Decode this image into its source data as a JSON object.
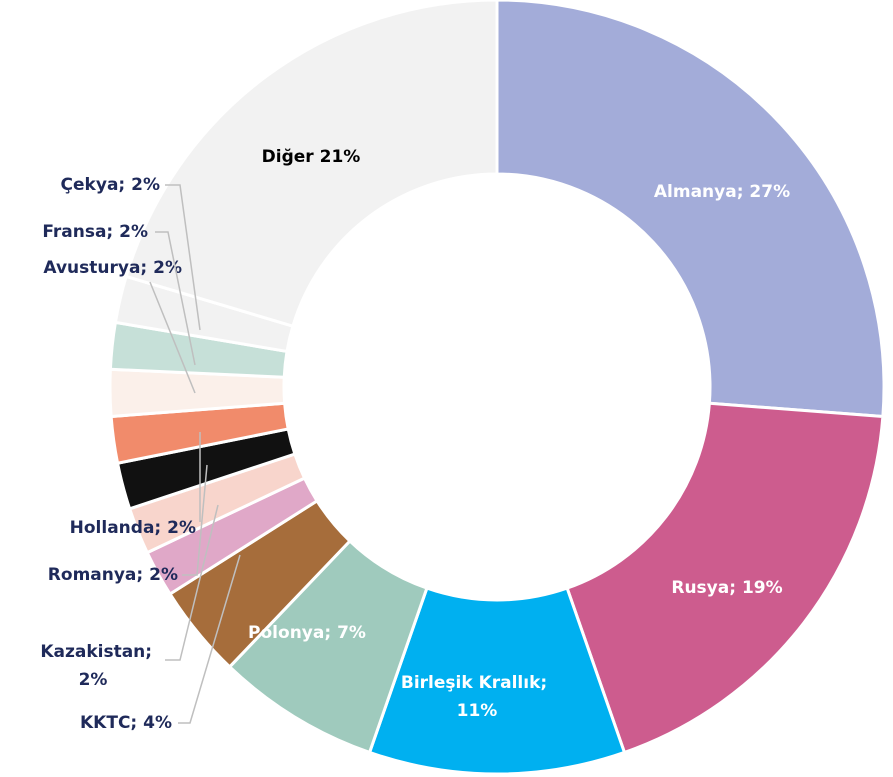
{
  "chart_data": {
    "type": "donut",
    "values": [
      27,
      19,
      11,
      7,
      4,
      2,
      2,
      2,
      2,
      2,
      2,
      2,
      21
    ],
    "value_labels": [
      "Almanya; 27%",
      "Rusya; 19%",
      "Birleşik Krallık; 11%",
      "Polonya; 7%",
      "KKTC; 4%",
      "Kazakistan; 2%",
      "Romanya; 2%",
      "Hollanda; 2%",
      "",
      "Avusturya; 2%",
      "Fransa; 2%",
      "Çekya; 2%",
      "Diğer 21%"
    ],
    "colors": [
      "#a3acd9",
      "#cd5c8e",
      "#00b0f0",
      "#9fcabd",
      "#a66d3b",
      "#e0a8c8",
      "#f8d5cc",
      "#111111",
      "#f18b6b",
      "#fbf0ea",
      "#c6e0d8",
      "#f2f2f2",
      "#f2f2f2"
    ]
  }
}
